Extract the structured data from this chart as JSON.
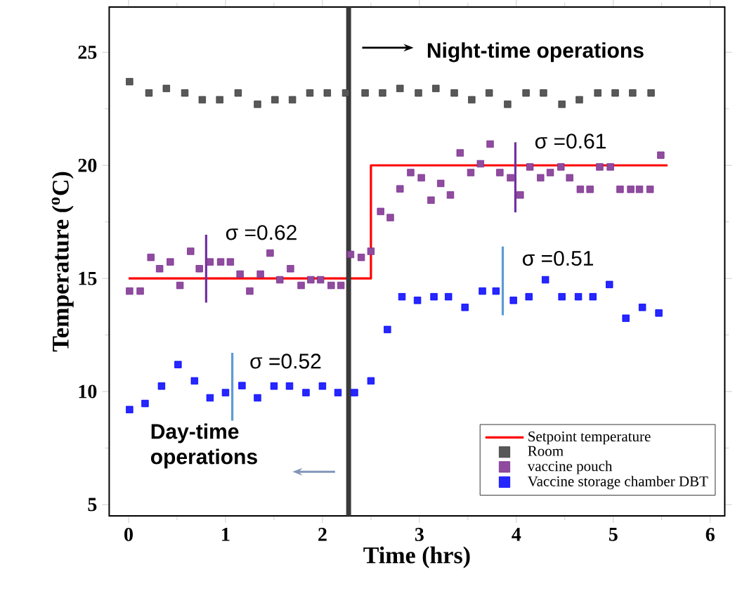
{
  "chart_data": {
    "type": "scatter",
    "xlabel": "Time (hrs)",
    "ylabel": "Temperature ($^{o}$C)",
    "xlim": [
      -0.2,
      6.15
    ],
    "ylim": [
      4.5,
      27
    ],
    "xticks": [
      0,
      1,
      2,
      3,
      4,
      5,
      6
    ],
    "yticks": [
      5,
      10,
      15,
      20,
      25
    ],
    "grid": false,
    "legend": "bottom right",
    "series": [
      {
        "name": "Setpoint temperature",
        "type": "step",
        "marker": "none",
        "color": "#ff0000",
        "x": [
          0,
          2.5,
          5.56
        ],
        "values": [
          15,
          20,
          20
        ]
      },
      {
        "name": "Room",
        "marker": "square",
        "color": "#3a3a3a",
        "x": [
          0.01,
          0.21,
          0.39,
          0.58,
          0.76,
          0.94,
          1.13,
          1.33,
          1.51,
          1.69,
          1.87,
          2.05,
          2.24,
          2.44,
          2.62,
          2.8,
          2.99,
          3.17,
          3.36,
          3.54,
          3.72,
          3.91,
          4.1,
          4.28,
          4.47,
          4.65,
          4.84,
          5.02,
          5.2,
          5.39
        ],
        "values": [
          23.7,
          23.2,
          23.4,
          23.2,
          22.9,
          22.9,
          23.2,
          22.7,
          22.9,
          22.9,
          23.2,
          23.2,
          23.2,
          23.2,
          23.2,
          23.4,
          23.2,
          23.4,
          23.2,
          22.9,
          23.2,
          22.7,
          23.2,
          23.2,
          22.7,
          22.9,
          23.2,
          23.2,
          23.2,
          23.2
        ]
      },
      {
        "name": "vaccine pouch",
        "marker": "square",
        "color": "#7b2d8e",
        "x": [
          0.01,
          0.12,
          0.23,
          0.32,
          0.43,
          0.53,
          0.64,
          0.73,
          0.84,
          0.95,
          1.05,
          1.15,
          1.25,
          1.36,
          1.46,
          1.56,
          1.67,
          1.78,
          1.88,
          1.98,
          2.09,
          2.19,
          2.29,
          2.4,
          2.5,
          2.6,
          2.7,
          2.8,
          2.91,
          3.02,
          3.12,
          3.22,
          3.32,
          3.42,
          3.53,
          3.63,
          3.73,
          3.83,
          3.94,
          4.04,
          4.14,
          4.25,
          4.35,
          4.46,
          4.55,
          4.66,
          4.76,
          4.86,
          4.97,
          5.07,
          5.18,
          5.27,
          5.38,
          5.49
        ],
        "values": [
          14.44,
          14.44,
          15.93,
          15.43,
          15.73,
          14.69,
          16.2,
          15.43,
          15.73,
          15.73,
          15.73,
          15.19,
          14.44,
          15.19,
          16.12,
          14.94,
          15.43,
          14.69,
          14.94,
          14.94,
          14.69,
          14.69,
          16.06,
          15.93,
          16.2,
          17.96,
          17.69,
          18.96,
          19.68,
          19.45,
          18.46,
          19.2,
          18.69,
          20.55,
          19.68,
          20.07,
          20.94,
          19.68,
          19.45,
          18.69,
          19.93,
          19.45,
          19.68,
          19.93,
          19.45,
          18.94,
          18.94,
          19.93,
          19.93,
          18.94,
          18.94,
          18.94,
          18.94,
          20.45
        ]
      },
      {
        "name": "Vaccine storage chamber DBT",
        "marker": "square",
        "color": "#0000ff",
        "x": [
          0.01,
          0.17,
          0.34,
          0.51,
          0.68,
          0.84,
          1.0,
          1.17,
          1.33,
          1.5,
          1.66,
          1.83,
          2.0,
          2.16,
          2.33,
          2.5,
          2.67,
          2.82,
          2.98,
          3.15,
          3.3,
          3.47,
          3.65,
          3.79,
          3.97,
          4.13,
          4.3,
          4.47,
          4.64,
          4.79,
          4.96,
          5.13,
          5.3,
          5.47
        ],
        "values": [
          9.2,
          9.47,
          10.24,
          11.19,
          10.47,
          9.72,
          9.95,
          10.26,
          9.72,
          10.24,
          10.24,
          9.95,
          10.24,
          9.95,
          9.95,
          10.47,
          12.74,
          14.19,
          14.03,
          14.19,
          14.19,
          13.72,
          14.44,
          14.44,
          14.03,
          14.19,
          14.94,
          14.19,
          14.19,
          14.19,
          14.73,
          13.24,
          13.72,
          13.47
        ]
      },
      {
        "type": "line",
        "marker": "none",
        "color": "#7030a0",
        "x": [
          0.8,
          0.8
        ],
        "values": [
          13.93,
          16.93
        ]
      },
      {
        "type": "line",
        "marker": "none",
        "color": "#5b9bd5",
        "x": [
          1.07,
          1.07
        ],
        "values": [
          8.71,
          11.71
        ]
      },
      {
        "type": "line",
        "marker": "none",
        "color": "#7030a0",
        "x": [
          3.99,
          3.99
        ],
        "values": [
          17.92,
          21.02
        ]
      },
      {
        "type": "line",
        "marker": "none",
        "color": "#5b9bd5",
        "x": [
          3.86,
          3.86
        ],
        "values": [
          13.37,
          16.41
        ]
      }
    ],
    "ref_lines": [
      {
        "axis": "x",
        "value": 2.27,
        "color": "#3a3a3a"
      }
    ],
    "annotations": [
      "Night-time operations",
      "Day-time operations",
      "σ =0.62",
      "σ =0.52",
      "σ =0.61",
      "σ =0.51"
    ]
  }
}
